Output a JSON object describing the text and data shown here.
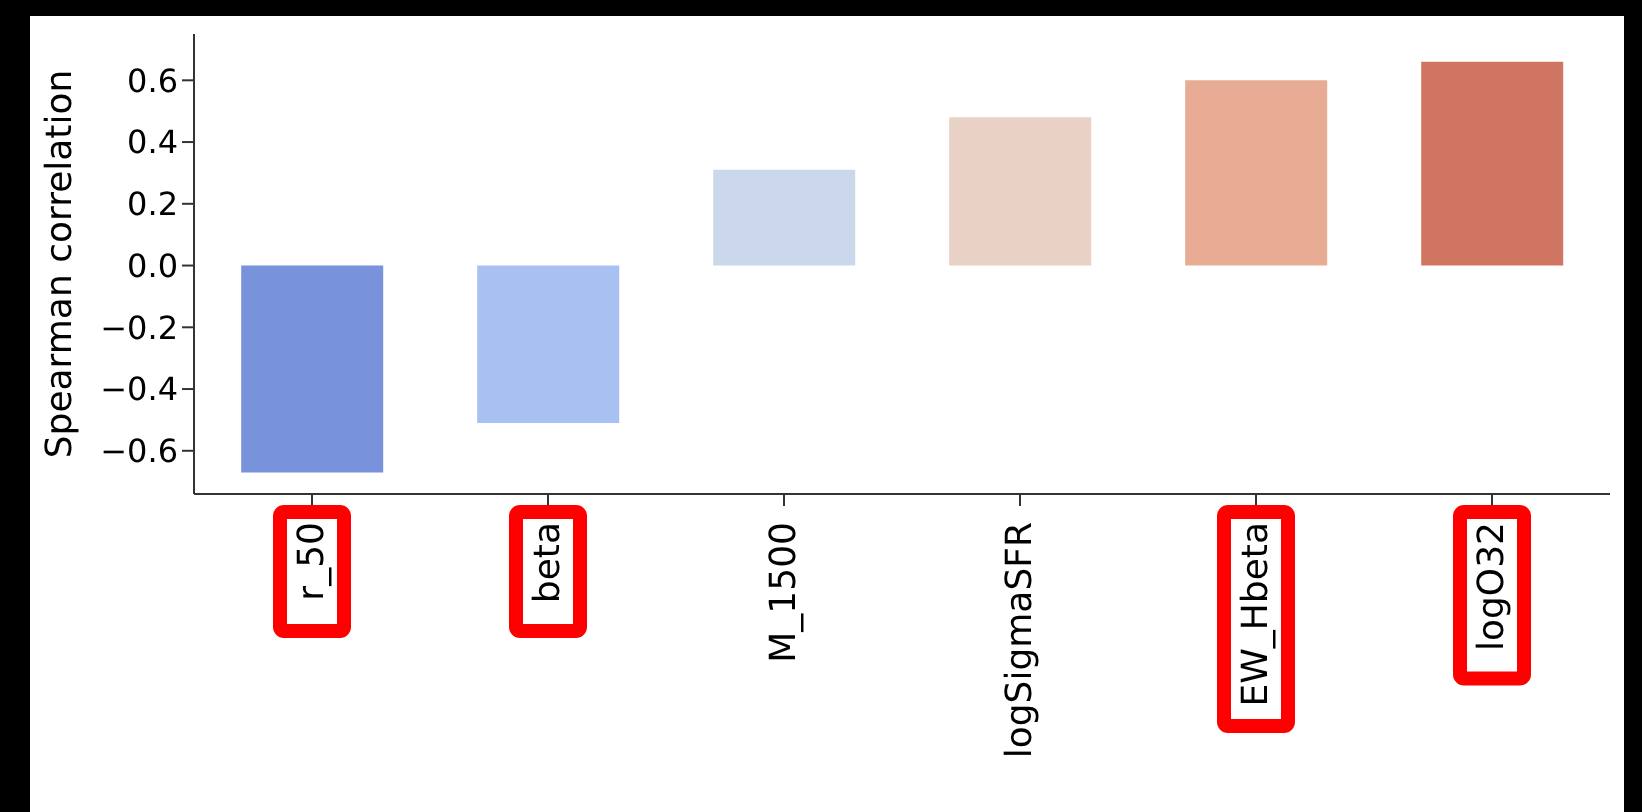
{
  "chart_data": {
    "type": "bar",
    "ylabel": "Spearman correlation",
    "categories": [
      "r_50",
      "beta",
      "M_1500",
      "logSigmaSFR",
      "EW_Hbeta",
      "logO32"
    ],
    "values": [
      -0.67,
      -0.51,
      0.31,
      0.48,
      0.6,
      0.66
    ],
    "colors": [
      "#7892db",
      "#a8c0f2",
      "#cbd7ea",
      "#e8d1c5",
      "#e8ab93",
      "#cf7562"
    ],
    "ylim": [
      -0.74,
      0.75
    ],
    "yticks": [
      {
        "value": -0.6,
        "label": "−0.6"
      },
      {
        "value": -0.4,
        "label": "−0.4"
      },
      {
        "value": -0.2,
        "label": "−0.2"
      },
      {
        "value": 0,
        "label": "0.0"
      },
      {
        "value": 0.2,
        "label": "0.2"
      },
      {
        "value": 0.4,
        "label": "0.4"
      },
      {
        "value": 0.6,
        "label": "0.6"
      }
    ],
    "grid": false,
    "legend": false
  }
}
